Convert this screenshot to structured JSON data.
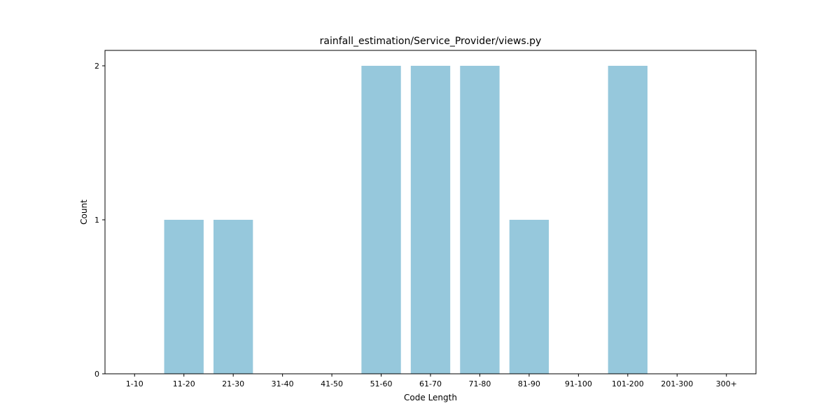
{
  "chart_data": {
    "type": "bar",
    "title": "rainfall_estimation/Service_Provider/views.py",
    "xlabel": "Code Length",
    "ylabel": "Count",
    "categories": [
      "1-10",
      "11-20",
      "21-30",
      "31-40",
      "41-50",
      "51-60",
      "61-70",
      "71-80",
      "81-90",
      "91-100",
      "101-200",
      "201-300",
      "300+"
    ],
    "values": [
      0,
      1,
      1,
      0,
      0,
      2,
      2,
      2,
      1,
      0,
      2,
      0,
      0
    ],
    "ylim": [
      0,
      2.1
    ],
    "yticks": [
      0,
      1,
      2
    ],
    "grid": false,
    "legend": "none",
    "colors": {
      "bar": "#96c8dc",
      "axis": "#000000",
      "background": "#ffffff"
    }
  }
}
